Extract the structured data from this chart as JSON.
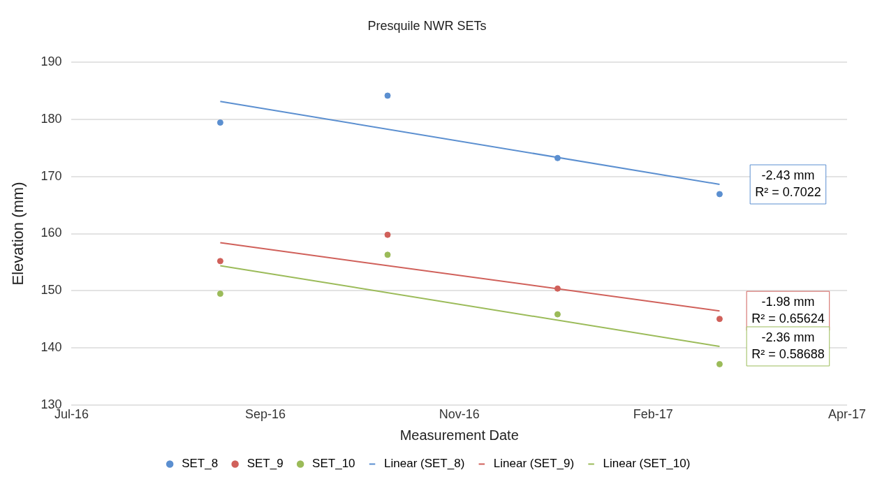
{
  "chart_data": {
    "type": "scatter",
    "title": "Presquile NWR SETs",
    "xlabel": "Measurement Date",
    "ylabel": "Elevation (mm)",
    "xlim": [
      "2016-07-01",
      "2017-04-19"
    ],
    "xticks": [
      {
        "value": "2016-07-01",
        "label": "Jul-16"
      },
      {
        "value": "2016-09-12",
        "label": "Sep-16"
      },
      {
        "value": "2016-11-24",
        "label": "Nov-16"
      },
      {
        "value": "2017-02-05",
        "label": "Feb-17"
      },
      {
        "value": "2017-04-19",
        "label": "Apr-17"
      }
    ],
    "ylim": [
      130,
      190
    ],
    "yticks": [
      130,
      140,
      150,
      160,
      170,
      180,
      190
    ],
    "grid": "y",
    "legend": "bottom",
    "marker": "circle",
    "series": [
      {
        "name": "SET_8",
        "color": "#5b8fd0",
        "x": [
          "2016-08-26",
          "2016-10-28",
          "2016-12-31",
          "2017-03-02"
        ],
        "values": [
          179.4,
          184.1,
          173.2,
          166.9
        ]
      },
      {
        "name": "SET_9",
        "color": "#d0605a",
        "x": [
          "2016-08-26",
          "2016-10-28",
          "2016-12-31",
          "2017-03-02"
        ],
        "values": [
          155.2,
          159.8,
          150.4,
          145.1
        ]
      },
      {
        "name": "SET_10",
        "color": "#9bbb59",
        "x": [
          "2016-08-26",
          "2016-10-28",
          "2016-12-31",
          "2017-03-02"
        ],
        "values": [
          149.5,
          156.3,
          145.9,
          137.2
        ]
      },
      {
        "name": "Linear (SET_8)",
        "type": "line",
        "marker": "none",
        "line_style": "solid",
        "color": "#5b8fd0",
        "x": [
          "2016-08-26",
          "2017-03-02"
        ],
        "values": [
          183.1,
          168.6
        ]
      },
      {
        "name": "Linear (SET_9)",
        "type": "line",
        "marker": "none",
        "line_style": "solid",
        "color": "#d0605a",
        "x": [
          "2016-08-26",
          "2017-03-02"
        ],
        "values": [
          158.4,
          146.5
        ]
      },
      {
        "name": "Linear (SET_10)",
        "type": "line",
        "marker": "none",
        "line_style": "solid",
        "color": "#9bbb59",
        "x": [
          "2016-08-26",
          "2017-03-02"
        ],
        "values": [
          154.4,
          140.3
        ]
      }
    ],
    "annotations": [
      {
        "text": "-2.43 mm\nR² = 0.7022",
        "x": "2017-03-02",
        "y": 168.6
      },
      {
        "text": "-1.98 mm\nR² = 0.65624",
        "x": "2017-03-02",
        "y": 146.5
      },
      {
        "text": "-2.36 mm\nR² = 0.58688",
        "x": "2017-03-02",
        "y": 140.3
      }
    ]
  }
}
